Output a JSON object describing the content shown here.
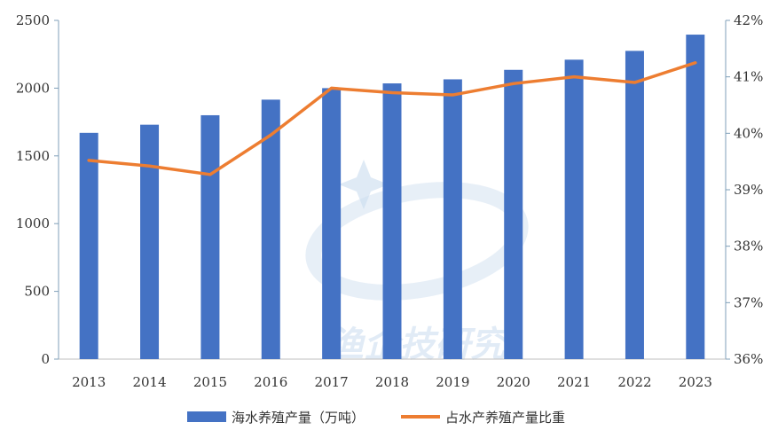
{
  "chart_data": {
    "type": "bar",
    "categories": [
      "2013",
      "2014",
      "2015",
      "2016",
      "2017",
      "2018",
      "2019",
      "2020",
      "2021",
      "2022",
      "2023"
    ],
    "series": [
      {
        "name": "海水养殖产量（万吨）",
        "type": "bar",
        "axis": "left",
        "color": "#4472c4",
        "values": [
          1670,
          1730,
          1800,
          1915,
          2000,
          2035,
          2065,
          2135,
          2210,
          2275,
          2395
        ]
      },
      {
        "name": "占水产养殖产量比重",
        "type": "line",
        "axis": "right",
        "color": "#ed7d31",
        "values": [
          39.52,
          39.42,
          39.27,
          39.97,
          40.8,
          40.72,
          40.68,
          40.88,
          41.0,
          40.9,
          41.25
        ]
      }
    ],
    "y_left": {
      "ylim": [
        0,
        2500
      ],
      "ticks": [
        "0",
        "500",
        "1000",
        "1500",
        "2000",
        "2500"
      ]
    },
    "y_right": {
      "ylim": [
        36,
        42
      ],
      "ticks": [
        "36%",
        "37%",
        "38%",
        "39%",
        "40%",
        "41%",
        "42%"
      ]
    },
    "grid": false,
    "legend": "bottom-center",
    "watermark": {
      "text": "渔企技研究"
    }
  }
}
